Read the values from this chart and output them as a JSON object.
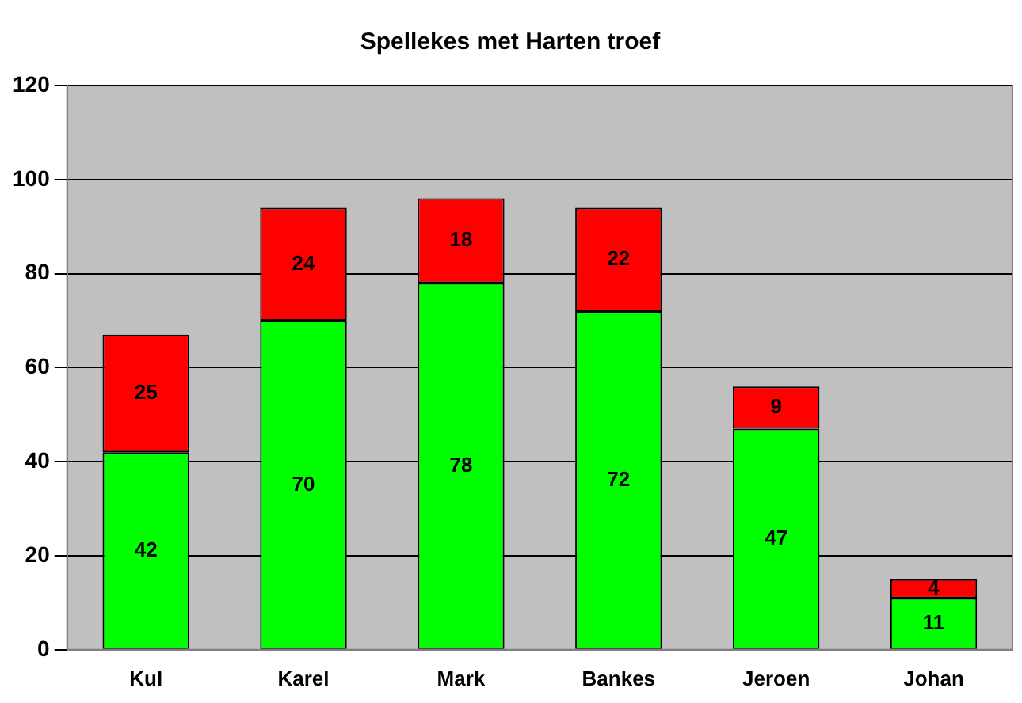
{
  "chart_data": {
    "type": "bar",
    "title": "Spellekes met Harten troef",
    "categories": [
      "Kul",
      "Karel",
      "Mark",
      "Bankes",
      "Jeroen",
      "Johan"
    ],
    "series": [
      {
        "color": "#00ff00",
        "values": [
          42,
          70,
          78,
          72,
          47,
          11
        ]
      },
      {
        "color": "#ff0000",
        "values": [
          25,
          24,
          18,
          22,
          9,
          4
        ]
      }
    ],
    "stacked": true,
    "ylim": [
      0,
      120
    ],
    "yticks": [
      0,
      20,
      40,
      60,
      80,
      100,
      120
    ],
    "grid": "y",
    "data_labels": true,
    "legend": false
  }
}
